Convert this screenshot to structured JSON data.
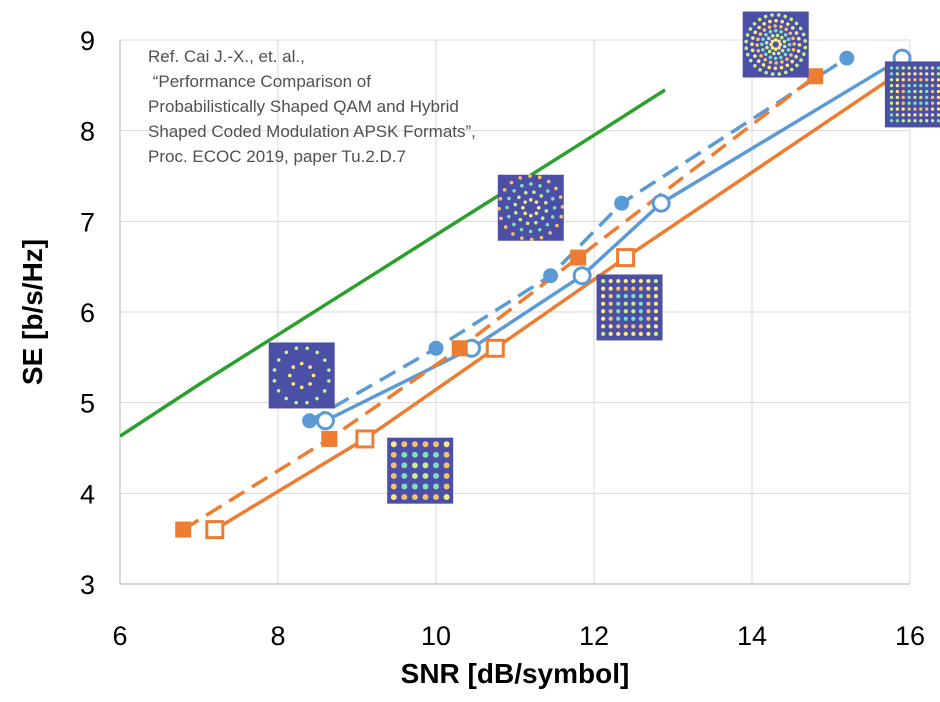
{
  "chart_data": {
    "type": "line",
    "xlabel": "SNR [dB/symbol]",
    "ylabel": "SE [b/s/Hz]",
    "xlim": [
      6,
      16
    ],
    "ylim": [
      3,
      9
    ],
    "x_ticks": [
      6,
      8,
      10,
      12,
      14,
      16
    ],
    "y_ticks": [
      3,
      4,
      5,
      6,
      7,
      8,
      9
    ],
    "grid": true,
    "legend": "none",
    "annotation": [
      "Ref. Cai J.-X., et. al.,",
      " “Performance Comparison of",
      "Probabilistically Shaped QAM and Hybrid",
      "Shaped Coded Modulation APSK Formats”,",
      "Proc. ECOC 2019, paper Tu.2.D.7"
    ],
    "colors": {
      "green": "#2ca02c",
      "blue": "#5b9bd5",
      "orange": "#ed7d31",
      "inset_bg": "#4b4fa6"
    },
    "series": [
      {
        "color": "#2ca02c",
        "style": "solid",
        "marker": "none",
        "x": [
          6.0,
          7.0,
          8.0,
          9.0,
          10.0,
          11.0,
          12.0,
          12.9
        ],
        "y": [
          4.63,
          5.2,
          5.75,
          6.3,
          6.85,
          7.4,
          7.95,
          8.45
        ]
      },
      {
        "color": "#5b9bd5",
        "style": "dashed",
        "marker": "filled-circle",
        "x": [
          8.4,
          10.0,
          11.45,
          12.35,
          15.2
        ],
        "y": [
          4.8,
          5.6,
          6.4,
          7.2,
          8.8
        ]
      },
      {
        "color": "#5b9bd5",
        "style": "solid",
        "marker": "open-circle",
        "x": [
          8.6,
          10.45,
          11.85,
          12.85,
          15.9
        ],
        "y": [
          4.8,
          5.6,
          6.4,
          7.2,
          8.8
        ]
      },
      {
        "color": "#ed7d31",
        "style": "dashed",
        "marker": "filled-square",
        "x": [
          6.8,
          8.65,
          10.3,
          11.8,
          14.8
        ],
        "y": [
          3.6,
          4.6,
          5.6,
          6.6,
          8.6
        ]
      },
      {
        "color": "#ed7d31",
        "style": "solid",
        "marker": "open-square",
        "x": [
          7.2,
          9.1,
          10.75,
          12.4,
          15.8
        ],
        "y": [
          3.6,
          4.6,
          5.6,
          6.6,
          8.6
        ]
      }
    ],
    "constellation_insets": [
      {
        "kind": "apsk",
        "rings": [
          0.18,
          0.42
        ],
        "counts": [
          8,
          16
        ],
        "x": 8.3,
        "y": 5.3
      },
      {
        "kind": "qam",
        "grid": 6,
        "x": 9.8,
        "y": 4.25
      },
      {
        "kind": "apsk",
        "rings": [
          0.12,
          0.24,
          0.36,
          0.48
        ],
        "counts": [
          8,
          12,
          16,
          20
        ],
        "x": 11.2,
        "y": 7.15
      },
      {
        "kind": "qam",
        "grid": 8,
        "x": 12.45,
        "y": 6.05
      },
      {
        "kind": "apsk",
        "rings": [
          0.07,
          0.14,
          0.21,
          0.28,
          0.36,
          0.45
        ],
        "counts": [
          8,
          12,
          16,
          20,
          24,
          28
        ],
        "x": 14.3,
        "y": 8.95
      },
      {
        "kind": "qam",
        "grid": 10,
        "x": 16.1,
        "y": 8.4
      }
    ]
  }
}
